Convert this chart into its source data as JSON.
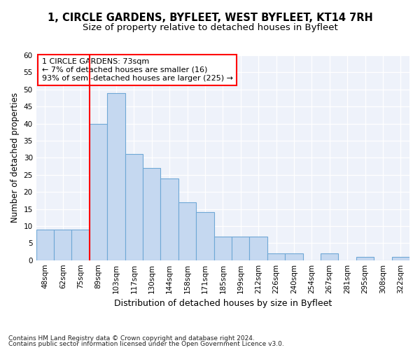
{
  "title1": "1, CIRCLE GARDENS, BYFLEET, WEST BYFLEET, KT14 7RH",
  "title2": "Size of property relative to detached houses in Byfleet",
  "xlabel": "Distribution of detached houses by size in Byfleet",
  "ylabel": "Number of detached properties",
  "categories": [
    "48sqm",
    "62sqm",
    "75sqm",
    "89sqm",
    "103sqm",
    "117sqm",
    "130sqm",
    "144sqm",
    "158sqm",
    "171sqm",
    "185sqm",
    "199sqm",
    "212sqm",
    "226sqm",
    "240sqm",
    "254sqm",
    "267sqm",
    "281sqm",
    "295sqm",
    "308sqm",
    "322sqm"
  ],
  "values": [
    9,
    9,
    9,
    40,
    49,
    31,
    27,
    24,
    17,
    14,
    7,
    7,
    7,
    2,
    2,
    0,
    2,
    0,
    1,
    0,
    1
  ],
  "bar_color": "#c5d8f0",
  "bar_edge_color": "#6fa8d6",
  "red_line_index": 2,
  "annotation_line1": "1 CIRCLE GARDENS: 73sqm",
  "annotation_line2": "← 7% of detached houses are smaller (16)",
  "annotation_line3": "93% of semi-detached houses are larger (225) →",
  "annotation_box_color": "white",
  "annotation_box_edge_color": "red",
  "red_line_color": "red",
  "ylim": [
    0,
    60
  ],
  "yticks": [
    0,
    5,
    10,
    15,
    20,
    25,
    30,
    35,
    40,
    45,
    50,
    55,
    60
  ],
  "footnote1": "Contains HM Land Registry data © Crown copyright and database right 2024.",
  "footnote2": "Contains public sector information licensed under the Open Government Licence v3.0.",
  "bg_color": "#eef2fa",
  "title1_fontsize": 10.5,
  "title2_fontsize": 9.5,
  "xlabel_fontsize": 9,
  "ylabel_fontsize": 8.5,
  "tick_fontsize": 7.5,
  "annotation_fontsize": 8,
  "footnote_fontsize": 6.5
}
